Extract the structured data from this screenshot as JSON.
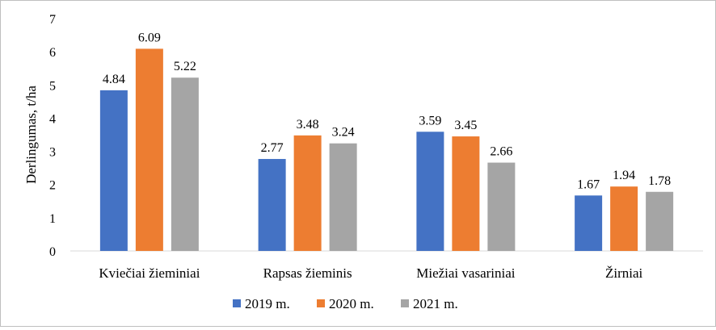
{
  "chart_data": {
    "type": "bar",
    "title": "",
    "xlabel": "",
    "ylabel": "Derlingumas, t/ha",
    "ylim": [
      0,
      7
    ],
    "yticks": [
      "0",
      "1",
      "2",
      "3",
      "4",
      "5",
      "6",
      "7"
    ],
    "grid": false,
    "legend_position": "bottom",
    "categories": [
      "Kviečiai žieminiai",
      "Rapsas žieminis",
      "Miežiai vasariniai",
      "Žirniai"
    ],
    "series": [
      {
        "name": "2019 m.",
        "color": "#4472c4",
        "values": [
          4.84,
          2.77,
          3.59,
          1.67
        ]
      },
      {
        "name": "2020 m.",
        "color": "#ed7d31",
        "values": [
          6.09,
          3.48,
          3.45,
          1.94
        ]
      },
      {
        "name": "2021 m.",
        "color": "#a5a5a5",
        "values": [
          5.22,
          3.24,
          2.66,
          1.78
        ]
      }
    ],
    "data_labels": [
      [
        "4.84",
        "2.77",
        "3.59",
        "1.67"
      ],
      [
        "6.09",
        "3.48",
        "3.45",
        "1.94"
      ],
      [
        "5.22",
        "3.24",
        "2.66",
        "1.78"
      ]
    ]
  }
}
